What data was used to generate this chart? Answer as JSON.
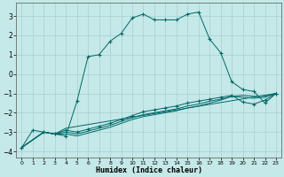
{
  "title": "",
  "xlabel": "Humidex (Indice chaleur)",
  "ylabel": "",
  "xlim": [
    -0.5,
    23.5
  ],
  "ylim": [
    -4.3,
    3.7
  ],
  "xticks": [
    0,
    1,
    2,
    3,
    4,
    5,
    6,
    7,
    8,
    9,
    10,
    11,
    12,
    13,
    14,
    15,
    16,
    17,
    18,
    19,
    20,
    21,
    22,
    23
  ],
  "yticks": [
    -4,
    -3,
    -2,
    -1,
    0,
    1,
    2,
    3
  ],
  "bg_color": "#c5e8e8",
  "grid_color": "#a8d0d0",
  "line_color": "#006868",
  "lines": [
    {
      "x": [
        0,
        1,
        2,
        3,
        4,
        5,
        6,
        7,
        8,
        9,
        10,
        11,
        12,
        13,
        14,
        15,
        16,
        17,
        18,
        19,
        20,
        21,
        22,
        23
      ],
      "y": [
        -3.8,
        -2.9,
        -3.0,
        -3.1,
        -3.2,
        -1.4,
        0.9,
        1.0,
        1.7,
        2.1,
        2.9,
        3.1,
        2.8,
        2.8,
        2.8,
        3.1,
        3.2,
        1.8,
        1.1,
        -0.4,
        -0.8,
        -0.9,
        -1.5,
        -1.0
      ],
      "marker": true
    },
    {
      "x": [
        0,
        2,
        3,
        4,
        23
      ],
      "y": [
        -3.8,
        -3.0,
        -3.1,
        -2.8,
        -1.0
      ],
      "marker": false,
      "full": false
    },
    {
      "x": [
        0,
        2,
        3,
        4,
        5,
        6,
        7,
        8,
        9,
        10,
        11,
        12,
        13,
        14,
        15,
        16,
        17,
        18,
        19,
        20,
        21,
        22,
        23
      ],
      "y": [
        -3.8,
        -3.0,
        -3.1,
        -2.9,
        -3.0,
        -2.85,
        -2.7,
        -2.55,
        -2.35,
        -2.15,
        -1.95,
        -1.85,
        -1.75,
        -1.65,
        -1.5,
        -1.4,
        -1.3,
        -1.2,
        -1.1,
        -1.45,
        -1.55,
        -1.35,
        -1.0
      ],
      "marker": true,
      "full": true
    },
    {
      "x": [
        0,
        2,
        3,
        4,
        5,
        6,
        7,
        8,
        9,
        10,
        11,
        12,
        13,
        14,
        15,
        16,
        17,
        18,
        19,
        20,
        21,
        22,
        23
      ],
      "y": [
        -3.8,
        -3.0,
        -3.1,
        -3.0,
        -3.1,
        -2.95,
        -2.8,
        -2.65,
        -2.45,
        -2.25,
        -2.1,
        -2.0,
        -1.9,
        -1.8,
        -1.65,
        -1.55,
        -1.4,
        -1.3,
        -1.15,
        -1.2,
        -1.25,
        -1.2,
        -1.0
      ],
      "marker": false,
      "full": true
    },
    {
      "x": [
        0,
        2,
        3,
        4,
        5,
        6,
        7,
        8,
        9,
        10,
        11,
        12,
        13,
        14,
        15,
        16,
        17,
        18,
        19,
        20,
        21,
        22,
        23
      ],
      "y": [
        -3.8,
        -3.0,
        -3.1,
        -3.1,
        -3.2,
        -3.05,
        -2.9,
        -2.75,
        -2.55,
        -2.35,
        -2.2,
        -2.1,
        -2.0,
        -1.9,
        -1.75,
        -1.65,
        -1.5,
        -1.35,
        -1.15,
        -1.1,
        -1.15,
        -1.15,
        -1.0
      ],
      "marker": false,
      "full": true
    }
  ]
}
